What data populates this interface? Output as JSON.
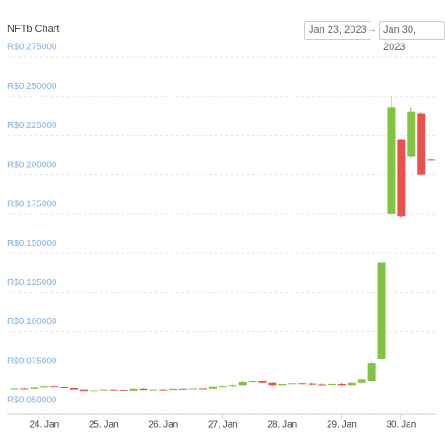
{
  "chart_data": {
    "type": "candlestick",
    "title": "NFTb Chart",
    "date_from": "Jan 23, 2023",
    "range_separator": "→",
    "date_to": "Jan 30, 2023",
    "up_color": "#82c341",
    "down_color": "#e9514f",
    "grid": true,
    "ylim": [
      0.05,
      0.275
    ],
    "yticks": [
      {
        "value": 0.05,
        "label": "R$0.050000"
      },
      {
        "value": 0.075,
        "label": "R$0.075000"
      },
      {
        "value": 0.1,
        "label": "R$0.100000"
      },
      {
        "value": 0.125,
        "label": "R$0.125000"
      },
      {
        "value": 0.15,
        "label": "R$0.150000"
      },
      {
        "value": 0.175,
        "label": "R$0.175000"
      },
      {
        "value": 0.2,
        "label": "R$0.200000"
      },
      {
        "value": 0.225,
        "label": "R$0.225000"
      },
      {
        "value": 0.25,
        "label": "R$0.250000"
      },
      {
        "value": 0.275,
        "label": "R$0.275000"
      }
    ],
    "categories": [
      null,
      null,
      null,
      "24. Jan",
      null,
      null,
      null,
      null,
      null,
      "25. Jan",
      null,
      null,
      null,
      null,
      null,
      "26. Jan",
      null,
      null,
      null,
      null,
      null,
      "27. Jan",
      null,
      null,
      null,
      null,
      null,
      "28. Jan",
      null,
      null,
      null,
      null,
      null,
      "29. Jan",
      null,
      null,
      null,
      null,
      null,
      "30. Jan",
      null,
      null,
      null
    ],
    "open": [
      0.064,
      0.0642,
      0.064,
      0.0648,
      0.0655,
      0.065,
      0.0645,
      0.0635,
      0.062,
      0.063,
      0.0635,
      0.0632,
      0.0628,
      0.064,
      0.0632,
      0.0635,
      0.0632,
      0.064,
      0.0638,
      0.0642,
      0.064,
      0.0652,
      0.0655,
      0.066,
      0.068,
      0.0685,
      0.0675,
      0.066,
      0.0668,
      0.0672,
      0.067,
      0.0665,
      0.0662,
      0.0668,
      0.066,
      0.0675,
      0.0685,
      0.083,
      0.175,
      0.2226,
      0.2117,
      0.2394,
      0.21
    ],
    "high": [
      0.0645,
      0.0648,
      0.065,
      0.066,
      0.0662,
      0.0655,
      0.065,
      0.064,
      0.0635,
      0.064,
      0.064,
      0.0638,
      0.0645,
      0.0645,
      0.0638,
      0.0642,
      0.0645,
      0.0645,
      0.0645,
      0.0648,
      0.0658,
      0.066,
      0.0665,
      0.0685,
      0.069,
      0.069,
      0.068,
      0.0672,
      0.0675,
      0.068,
      0.0675,
      0.0672,
      0.067,
      0.0675,
      0.068,
      0.0705,
      0.081,
      0.145,
      0.25,
      0.223,
      0.243,
      0.24,
      0.2102
    ],
    "low": [
      0.0635,
      0.0638,
      0.0638,
      0.0645,
      0.0648,
      0.064,
      0.063,
      0.0615,
      0.0615,
      0.0625,
      0.063,
      0.0625,
      0.0625,
      0.063,
      0.0628,
      0.063,
      0.063,
      0.0635,
      0.0635,
      0.0638,
      0.0638,
      0.0648,
      0.065,
      0.0658,
      0.0675,
      0.067,
      0.0655,
      0.0655,
      0.0665,
      0.0665,
      0.066,
      0.0658,
      0.066,
      0.0655,
      0.0658,
      0.067,
      0.068,
      0.0825,
      0.1745,
      0.173,
      0.211,
      0.1995,
      0.2096
    ],
    "close": [
      0.0642,
      0.064,
      0.0648,
      0.0655,
      0.065,
      0.0645,
      0.0635,
      0.062,
      0.063,
      0.0635,
      0.0632,
      0.0628,
      0.064,
      0.0632,
      0.0635,
      0.0632,
      0.064,
      0.0638,
      0.0642,
      0.064,
      0.0652,
      0.0655,
      0.066,
      0.068,
      0.0685,
      0.0675,
      0.066,
      0.0668,
      0.0672,
      0.067,
      0.0665,
      0.0662,
      0.0668,
      0.066,
      0.0675,
      0.07,
      0.08,
      0.144,
      0.243,
      0.1736,
      0.2405,
      0.2001,
      0.2098
    ]
  }
}
